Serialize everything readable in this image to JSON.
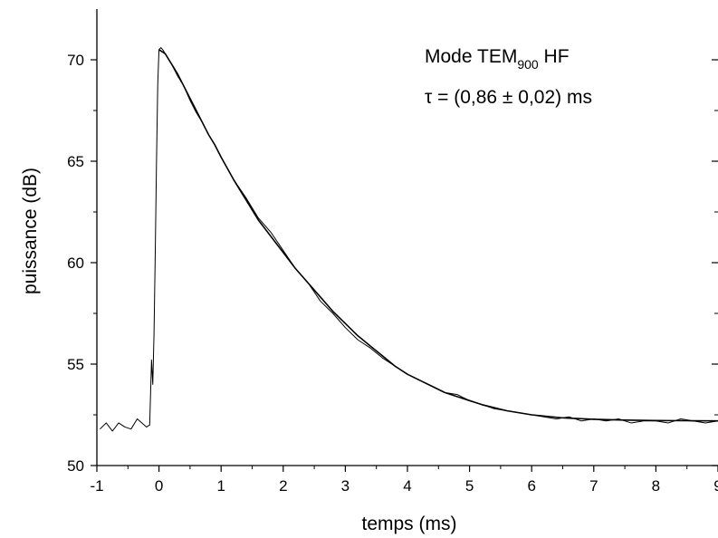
{
  "chart_data": {
    "type": "line",
    "title": "",
    "xlabel": "temps (ms)",
    "ylabel": "puissance (dB)",
    "xlim": [
      -1,
      9
    ],
    "ylim": [
      50,
      72.5
    ],
    "x_ticks": [
      -1,
      0,
      1,
      2,
      3,
      4,
      5,
      6,
      7,
      8,
      9
    ],
    "y_ticks": [
      50,
      55,
      60,
      65,
      70
    ],
    "x_tick_labels": [
      "-1",
      "0",
      "1",
      "2",
      "3",
      "4",
      "5",
      "6",
      "7",
      "8",
      "9"
    ],
    "y_tick_labels": [
      "50",
      "55",
      "60",
      "65",
      "70"
    ],
    "grid": false,
    "annotations": {
      "mode_text": "Mode TEM",
      "mode_subscript": "900",
      "mode_suffix": " HF",
      "tau_text": "τ = (0,86 ± 0,02) ms"
    },
    "series": [
      {
        "kind": "measured",
        "color": "#000000",
        "x": [
          -0.95,
          -0.85,
          -0.75,
          -0.65,
          -0.55,
          -0.45,
          -0.35,
          -0.2,
          -0.15,
          -0.12,
          -0.1,
          -0.08,
          -0.06,
          -0.04,
          -0.02,
          0.0,
          0.03,
          0.06,
          0.1,
          0.2,
          0.3,
          0.4,
          0.5,
          0.6,
          0.7,
          0.8,
          0.9,
          1.0,
          1.2,
          1.4,
          1.6,
          1.8,
          2.0,
          2.2,
          2.4,
          2.6,
          2.8,
          3.0,
          3.2,
          3.4,
          3.6,
          3.8,
          4.0,
          4.2,
          4.4,
          4.6,
          4.8,
          5.0,
          5.2,
          5.4,
          5.6,
          5.8,
          6.0,
          6.2,
          6.4,
          6.6,
          6.8,
          7.0,
          7.2,
          7.4,
          7.6,
          7.8,
          8.0,
          8.2,
          8.4,
          8.6,
          8.8,
          9.0
        ],
        "y": [
          51.8,
          52.1,
          51.7,
          52.1,
          51.9,
          51.8,
          52.3,
          51.9,
          52.0,
          55.2,
          54.0,
          56.5,
          60.5,
          65.0,
          68.8,
          70.5,
          70.6,
          70.5,
          70.3,
          69.8,
          69.2,
          68.7,
          68.0,
          67.4,
          66.9,
          66.3,
          65.8,
          65.2,
          64.1,
          63.2,
          62.2,
          61.5,
          60.6,
          59.7,
          59.0,
          58.1,
          57.5,
          56.8,
          56.2,
          55.8,
          55.3,
          54.9,
          54.5,
          54.2,
          53.9,
          53.6,
          53.5,
          53.2,
          53.0,
          52.8,
          52.7,
          52.6,
          52.5,
          52.4,
          52.3,
          52.4,
          52.2,
          52.3,
          52.2,
          52.3,
          52.1,
          52.2,
          52.2,
          52.1,
          52.3,
          52.2,
          52.1,
          52.2
        ]
      },
      {
        "kind": "fit",
        "color": "#000000",
        "x": [
          0.0,
          0.1,
          0.2,
          0.3,
          0.4,
          0.5,
          0.6,
          0.7,
          0.8,
          0.9,
          1.0,
          1.2,
          1.4,
          1.6,
          1.8,
          2.0,
          2.2,
          2.4,
          2.6,
          2.8,
          3.0,
          3.2,
          3.4,
          3.6,
          3.8,
          4.0,
          4.2,
          4.4,
          4.6,
          4.8,
          5.0,
          5.2,
          5.4,
          5.6,
          5.8,
          6.0,
          6.5,
          7.0,
          7.5,
          8.0,
          8.5,
          9.0
        ],
        "y": [
          70.5,
          70.3,
          69.8,
          69.3,
          68.7,
          68.1,
          67.5,
          66.9,
          66.3,
          65.8,
          65.2,
          64.1,
          63.1,
          62.1,
          61.3,
          60.5,
          59.7,
          59.0,
          58.3,
          57.6,
          57.0,
          56.4,
          55.9,
          55.4,
          54.9,
          54.5,
          54.2,
          53.9,
          53.6,
          53.4,
          53.2,
          53.0,
          52.85,
          52.7,
          52.6,
          52.5,
          52.35,
          52.28,
          52.24,
          52.22,
          52.21,
          52.2
        ]
      }
    ]
  }
}
